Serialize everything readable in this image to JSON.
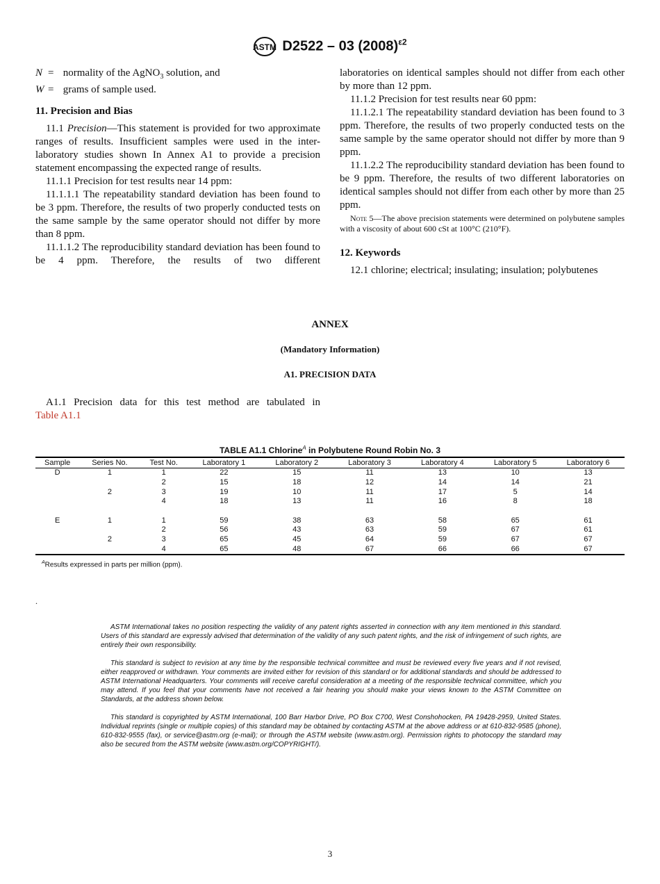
{
  "header": {
    "designation": "D2522 – 03 (2008)",
    "superscript": "ε2",
    "logo": "ASTM"
  },
  "left": {
    "vars": [
      {
        "sym": "N",
        "eq": "=",
        "def_pre": "normality of the AgNO",
        "sub": "3",
        "def_post": " solution, and"
      },
      {
        "sym": "W",
        "eq": "=",
        "def_pre": "grams of sample used.",
        "sub": "",
        "def_post": ""
      }
    ],
    "section11": "11.  Precision and Bias",
    "p11_1_num": "11.1 ",
    "p11_1_em": "Precision",
    "p11_1": "—This statement is provided for two approximate ranges of results. Insufficient samples were used in the inter-laboratory studies shown In Annex A1 to provide a precision statement encompassing the expected range of results.",
    "p11_1_1": "11.1.1 Precision for test results near 14 ppm:",
    "p11_1_1_1": "11.1.1.1 The repeatability standard deviation has been found to be 3 ppm. Therefore, the results of two properly conducted tests on the same sample by the same operator should not differ by more than 8 ppm.",
    "p11_1_1_2": "11.1.1.2 The reproducibility standard deviation has been found to be 4 ppm. Therefore, the results of two different"
  },
  "right": {
    "cont": "laboratories on identical samples should not differ from each other by more than 12 ppm.",
    "p11_1_2": "11.1.2 Precision for test results near 60 ppm:",
    "p11_1_2_1": "11.1.2.1 The repeatability standard deviation has been found to 3 ppm. Therefore, the results of two properly conducted tests on the same sample by the same operator should not differ by more than 9 ppm.",
    "p11_1_2_2": "11.1.2.2 The reproducibility standard deviation has been found to be 9 ppm. Therefore, the results of two different laboratories on identical samples should not differ from each other by more than 25 ppm.",
    "note_label": "Note 5",
    "note": "—The above precision statements were determined on polybutene samples with a viscosity of about 600 cSt at 100°C (210°F).",
    "section12": "12.  Keywords",
    "p12_1": "12.1 chlorine; electrical; insulating; insulation; polybutenes"
  },
  "annex": {
    "title": "ANNEX",
    "subtitle": "(Mandatory Information)",
    "section": "A1.  PRECISION  DATA",
    "text": "A1.1 Precision data for this test method are tabulated in",
    "link": "Table A1.1"
  },
  "table": {
    "title_pre": "TABLE A1.1 Chlorine",
    "title_sup": "A",
    "title_post": " in Polybutene Round Robin No. 3",
    "headers": [
      "Sample",
      "Series No.",
      "Test No.",
      "Laboratory 1",
      "Laboratory 2",
      "Laboratory 3",
      "Laboratory 4",
      "Laboratory 5",
      "Laboratory 6"
    ],
    "rows": [
      [
        "D",
        "1",
        "1",
        "22",
        "15",
        "11",
        "13",
        "10",
        "13"
      ],
      [
        "",
        "",
        "2",
        "15",
        "18",
        "12",
        "14",
        "14",
        "21"
      ],
      [
        "",
        "2",
        "3",
        "19",
        "10",
        "11",
        "17",
        "5",
        "14"
      ],
      [
        "",
        "",
        "4",
        "18",
        "13",
        "11",
        "16",
        "8",
        "18"
      ],
      [
        "",
        "",
        "",
        "",
        "",
        "",
        "",
        "",
        ""
      ],
      [
        "E",
        "1",
        "1",
        "59",
        "38",
        "63",
        "58",
        "65",
        "61"
      ],
      [
        "",
        "",
        "2",
        "56",
        "43",
        "63",
        "59",
        "67",
        "61"
      ],
      [
        "",
        "2",
        "3",
        "65",
        "45",
        "64",
        "59",
        "67",
        "67"
      ],
      [
        "",
        "",
        "4",
        "65",
        "48",
        "67",
        "66",
        "66",
        "67"
      ]
    ],
    "footnote_sup": "A",
    "footnote": "Results expressed in parts per million (ppm)."
  },
  "dot": ".",
  "footer": [
    "ASTM International takes no position respecting the validity of any patent rights asserted in connection with any item mentioned in this standard. Users of this standard are expressly advised that determination of the validity of any such patent rights, and the risk of infringement of such rights, are entirely their own responsibility.",
    "This standard is subject to revision at any time by the responsible technical committee and must be reviewed every five years and if not revised, either reapproved or withdrawn. Your comments are invited either for revision of this standard or for additional standards and should be addressed to ASTM International Headquarters. Your comments will receive careful consideration at a meeting of the responsible technical committee, which you may attend. If you feel that your comments have not received a fair hearing you should make your views known to the ASTM Committee on Standards, at the address shown below.",
    "This standard is copyrighted by ASTM International, 100 Barr Harbor Drive, PO Box C700, West Conshohocken, PA 19428-2959, United States. Individual reprints (single or multiple copies) of this standard may be obtained by contacting ASTM at the above address or at 610-832-9585 (phone), 610-832-9555 (fax), or service@astm.org (e-mail); or through the ASTM website (www.astm.org). Permission rights to photocopy the standard may also be secured from the ASTM website (www.astm.org/COPYRIGHT/)."
  ],
  "page_number": "3"
}
